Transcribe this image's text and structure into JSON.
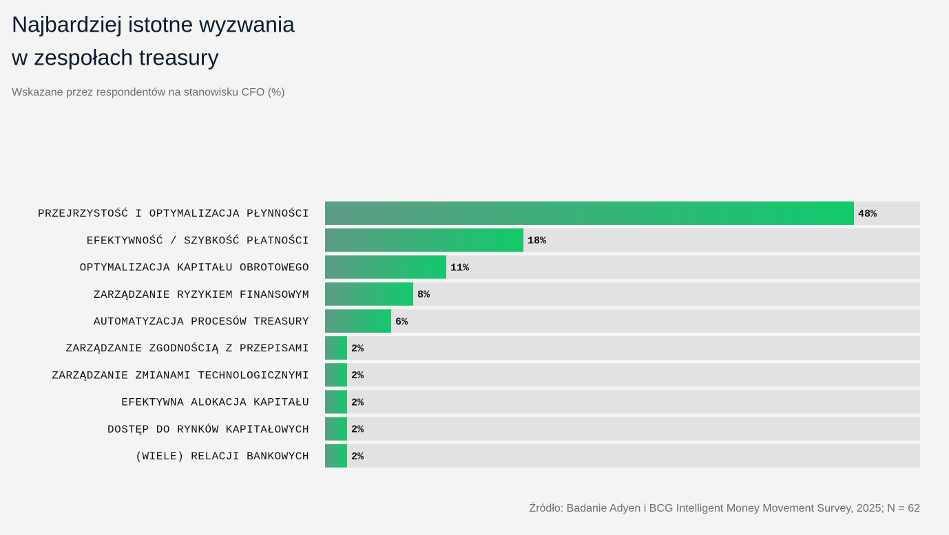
{
  "chart_data": {
    "type": "bar",
    "orientation": "horizontal",
    "title": [
      "Najbardziej istotne wyzwania",
      "w zespołach treasury"
    ],
    "subtitle": "Wskazane przez respondentów na stanowisku CFO (%)",
    "categories": [
      "PRZEJRZYSTOŚĆ I OPTYMALIZACJA PŁYNNOŚCI",
      "EFEKTYWNOŚĆ / SZYBKOŚĆ PŁATNOŚCI",
      "OPTYMALIZACJA KAPITAŁU OBROTOWEGO",
      "ZARZĄDZANIE RYZYKIEM FINANSOWYM",
      "AUTOMATYZACJA PROCESÓW TREASURY",
      "ZARZĄDZANIE ZGODNOŚCIĄ Z PRZEPISAMI",
      "ZARZĄDZANIE ZMIANAMI TECHNOLOGICZNYMI",
      "EFEKTYWNA ALOKACJA KAPITAŁU",
      "DOSTĘP DO RYNKÓW KAPITAŁOWYCH",
      "(WIELE) RELACJI BANKOWYCH"
    ],
    "values": [
      48,
      18,
      11,
      8,
      6,
      2,
      2,
      2,
      2,
      2
    ],
    "value_labels": [
      "48%",
      "18%",
      "11%",
      "8%",
      "6%",
      "2%",
      "2%",
      "2%",
      "2%",
      "2%"
    ],
    "color": "#12c96b",
    "xlim": [
      0,
      54
    ],
    "source": "Źródło: Badanie Adyen i BCG Intelligent Money Movement Survey, 2025; N = 62"
  }
}
